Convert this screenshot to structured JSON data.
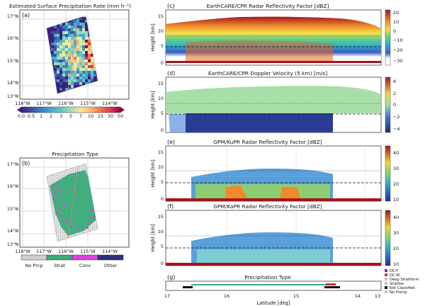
{
  "map_a": {
    "title": "Estimated Surface Precipitation Rate (mm h⁻¹)",
    "panel_label": "(a)",
    "lat_ticks": [
      "17°N",
      "16°N",
      "15°N",
      "14°N",
      "13°N"
    ],
    "lon_ticks": [
      "118°W",
      "117°W",
      "116°W",
      "115°W",
      "114°W"
    ],
    "colorbar": {
      "labels": [
        "0.0",
        "0.5",
        "1",
        "2",
        "3",
        "5",
        "7",
        "10",
        "15",
        "30",
        "50"
      ],
      "colors": [
        "#3e1f7a",
        "#3a4fa3",
        "#3b7fbe",
        "#47a8cf",
        "#66c5c0",
        "#a2dcb4",
        "#dcedaa",
        "#fde59a",
        "#fdb66c",
        "#f1774a",
        "#d43d4f",
        "#9e0142"
      ]
    }
  },
  "map_b": {
    "title": "Precipitation Type",
    "panel_label": "(b)",
    "lat_ticks": [
      "17°N",
      "16°N",
      "15°N",
      "14°N",
      "13°N"
    ],
    "lon_ticks": [
      "118°W",
      "117°W",
      "116°W",
      "115°W",
      "114°W"
    ],
    "legend": [
      {
        "label": "No Prcp",
        "color": "#cfcfcf"
      },
      {
        "label": "Strat",
        "color": "#3aab7a"
      },
      {
        "label": "Conv",
        "color": "#e43de4"
      },
      {
        "label": "Other",
        "color": "#2f2f7a"
      }
    ]
  },
  "profiles": [
    {
      "id": "c",
      "title": "EarthCARE/CPR Radar Reflectivity Factor [dBZ]",
      "ylabel": "Height [km]",
      "yticks": [
        "15",
        "10",
        "5",
        "0"
      ],
      "cbar_ticks": [
        "20",
        "10",
        "0",
        "−10",
        "−20",
        "−30"
      ]
    },
    {
      "id": "d",
      "title": "EarthCARE/CPR Doppler Velocity (5 km) [m/s]",
      "ylabel": "Height [km]",
      "yticks": [
        "15",
        "10",
        "5",
        "0"
      ],
      "cbar_ticks": [
        "4",
        "2",
        "0",
        "−2",
        "−4"
      ]
    },
    {
      "id": "e",
      "title": "GPM/KuPR Radar Reflectivity Factor [dBZ]",
      "ylabel": "Height [km]",
      "yticks": [
        "15",
        "10",
        "5",
        "0"
      ],
      "cbar_ticks": [
        "40",
        "30",
        "20",
        "10"
      ]
    },
    {
      "id": "f",
      "title": "GPM/KaPR Radar Reflectivity Factor [dBZ]",
      "ylabel": "Height [km]",
      "yticks": [
        "15",
        "10",
        "5",
        "0"
      ],
      "cbar_ticks": [
        "40",
        "30",
        "20",
        "10"
      ]
    }
  ],
  "panel_g": {
    "id": "g",
    "title": "Precipitation Type",
    "xlabel": "Latitude [deg]",
    "xticks": [
      "17",
      "16",
      "15",
      "14",
      "13"
    ],
    "legend": [
      {
        "label": "DC-T",
        "color": "#6a2fb0"
      },
      {
        "label": "DC-M",
        "color": "#d6362b"
      },
      {
        "label": "Deep Stratiform",
        "color": "#c1c1c1"
      },
      {
        "label": "Shallow",
        "color": "#c1c1c1"
      },
      {
        "label": "Not Classified",
        "color": "#111111"
      },
      {
        "label": "No Precip",
        "color": "#c1c1c1"
      }
    ]
  }
}
